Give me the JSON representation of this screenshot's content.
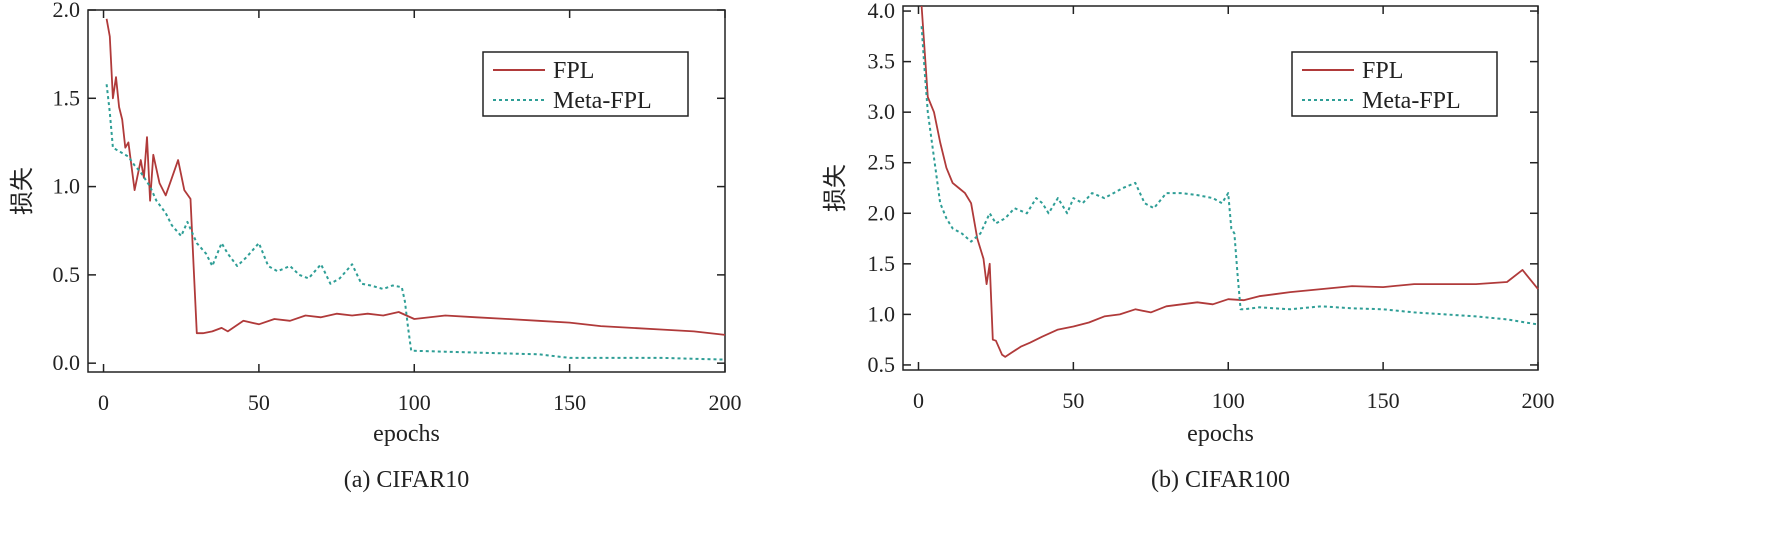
{
  "colors": {
    "fpl": "#b03a3a",
    "meta_fpl": "#2e9e96",
    "axis": "#222222",
    "background": "#ffffff"
  },
  "chart_data": [
    {
      "type": "line",
      "caption": "(a) CIFAR10",
      "xlabel": "epochs",
      "ylabel": "损失",
      "xlim": [
        -5,
        200
      ],
      "ylim": [
        -0.05,
        2.0
      ],
      "xticks": [
        0,
        50,
        100,
        150,
        200
      ],
      "yticks": [
        0.0,
        0.5,
        1.0,
        1.5,
        2.0
      ],
      "ytick_labels": [
        "0.0",
        "0.5",
        "1.0",
        "1.5",
        "2.0"
      ],
      "legend": "top-right",
      "grid": false,
      "series": [
        {
          "name": "FPL",
          "style": "solid",
          "color": "#b03a3a",
          "x": [
            1,
            2,
            3,
            4,
            5,
            6,
            7,
            8,
            10,
            12,
            13,
            14,
            15,
            16,
            17,
            18,
            20,
            22,
            24,
            26,
            28,
            29,
            30,
            32,
            35,
            38,
            40,
            45,
            50,
            55,
            60,
            65,
            70,
            75,
            80,
            85,
            90,
            95,
            100,
            110,
            120,
            130,
            140,
            150,
            160,
            170,
            180,
            190,
            200
          ],
          "y": [
            1.95,
            1.85,
            1.5,
            1.62,
            1.45,
            1.38,
            1.22,
            1.25,
            0.98,
            1.15,
            1.05,
            1.28,
            0.92,
            1.18,
            1.1,
            1.02,
            0.95,
            1.05,
            1.15,
            0.98,
            0.93,
            0.55,
            0.17,
            0.17,
            0.18,
            0.2,
            0.18,
            0.24,
            0.22,
            0.25,
            0.24,
            0.27,
            0.26,
            0.28,
            0.27,
            0.28,
            0.27,
            0.29,
            0.25,
            0.27,
            0.26,
            0.25,
            0.24,
            0.23,
            0.21,
            0.2,
            0.19,
            0.18,
            0.16
          ]
        },
        {
          "name": "Meta-FPL",
          "style": "dotted",
          "color": "#2e9e96",
          "x": [
            1,
            2,
            3,
            5,
            8,
            10,
            12,
            15,
            17,
            20,
            22,
            25,
            27,
            30,
            33,
            35,
            38,
            40,
            43,
            46,
            50,
            53,
            56,
            60,
            63,
            66,
            70,
            73,
            76,
            80,
            83,
            86,
            90,
            93,
            96,
            97,
            98,
            99,
            100,
            110,
            120,
            130,
            140,
            150,
            160,
            170,
            180,
            190,
            200
          ],
          "y": [
            1.58,
            1.42,
            1.22,
            1.2,
            1.17,
            1.12,
            1.08,
            1.0,
            0.92,
            0.85,
            0.78,
            0.72,
            0.8,
            0.68,
            0.62,
            0.55,
            0.68,
            0.62,
            0.55,
            0.6,
            0.68,
            0.55,
            0.52,
            0.55,
            0.5,
            0.48,
            0.56,
            0.45,
            0.48,
            0.56,
            0.45,
            0.44,
            0.42,
            0.44,
            0.43,
            0.35,
            0.2,
            0.07,
            0.07,
            0.065,
            0.06,
            0.055,
            0.05,
            0.03,
            0.03,
            0.03,
            0.03,
            0.025,
            0.02
          ]
        }
      ]
    },
    {
      "type": "line",
      "caption": "(b) CIFAR100",
      "xlabel": "epochs",
      "ylabel": "损失",
      "xlim": [
        -5,
        200
      ],
      "ylim": [
        0.45,
        4.05
      ],
      "xticks": [
        0,
        50,
        100,
        150,
        200
      ],
      "yticks": [
        0.5,
        1.0,
        1.5,
        2.0,
        2.5,
        3.0,
        3.5,
        4.0
      ],
      "ytick_labels": [
        "0.5",
        "1.0",
        "1.5",
        "2.0",
        "2.5",
        "3.0",
        "3.5",
        "4.0"
      ],
      "legend": "top-right",
      "grid": false,
      "series": [
        {
          "name": "FPL",
          "style": "solid",
          "color": "#b03a3a",
          "x": [
            1,
            2,
            3,
            5,
            7,
            9,
            11,
            13,
            15,
            17,
            19,
            21,
            22,
            23,
            24,
            25,
            27,
            28,
            30,
            33,
            36,
            40,
            45,
            50,
            55,
            60,
            65,
            70,
            75,
            80,
            85,
            90,
            95,
            100,
            105,
            110,
            115,
            120,
            130,
            140,
            150,
            160,
            170,
            180,
            190,
            195,
            200
          ],
          "y": [
            4.05,
            3.6,
            3.15,
            3.0,
            2.7,
            2.45,
            2.3,
            2.25,
            2.2,
            2.1,
            1.75,
            1.55,
            1.3,
            1.5,
            0.75,
            0.74,
            0.6,
            0.58,
            0.62,
            0.68,
            0.72,
            0.78,
            0.85,
            0.88,
            0.92,
            0.98,
            1.0,
            1.05,
            1.02,
            1.08,
            1.1,
            1.12,
            1.1,
            1.15,
            1.14,
            1.18,
            1.2,
            1.22,
            1.25,
            1.28,
            1.27,
            1.3,
            1.3,
            1.3,
            1.32,
            1.44,
            1.25
          ]
        },
        {
          "name": "Meta-FPL",
          "style": "dotted",
          "color": "#2e9e96",
          "x": [
            1,
            2,
            3,
            5,
            7,
            9,
            11,
            14,
            17,
            20,
            23,
            25,
            28,
            31,
            35,
            38,
            40,
            42,
            45,
            48,
            50,
            53,
            56,
            60,
            63,
            66,
            70,
            73,
            76,
            80,
            85,
            90,
            95,
            98,
            100,
            101,
            102,
            103,
            104,
            105,
            110,
            120,
            130,
            140,
            150,
            160,
            170,
            180,
            190,
            200
          ],
          "y": [
            3.85,
            3.4,
            3.0,
            2.55,
            2.1,
            1.95,
            1.85,
            1.8,
            1.72,
            1.8,
            2.0,
            1.9,
            1.95,
            2.05,
            2.0,
            2.15,
            2.1,
            2.0,
            2.15,
            2.0,
            2.15,
            2.1,
            2.2,
            2.15,
            2.2,
            2.25,
            2.3,
            2.1,
            2.05,
            2.2,
            2.2,
            2.18,
            2.15,
            2.1,
            2.2,
            1.85,
            1.8,
            1.4,
            1.05,
            1.05,
            1.07,
            1.05,
            1.08,
            1.06,
            1.05,
            1.02,
            1.0,
            0.98,
            0.95,
            0.9
          ]
        }
      ]
    }
  ]
}
